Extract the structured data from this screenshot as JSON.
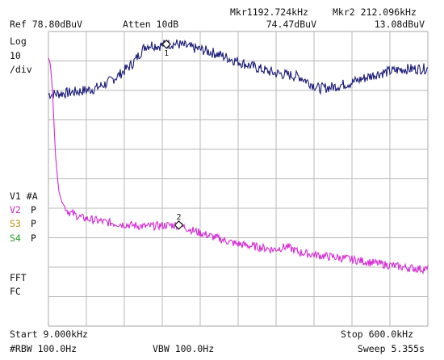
{
  "header": {
    "ref_level": "Ref 78.80dBuV",
    "atten": "Atten 10dB",
    "marker1_freq": "Mkr1192.724kHz",
    "marker1_amp": "74.47dBuV",
    "marker2_freq": "Mkr2 212.096kHz",
    "marker2_amp": "13.08dBuV"
  },
  "scale": {
    "log_label": "Log",
    "per_div_value": "10",
    "per_div_unit": "/div"
  },
  "side_labels": {
    "v1": "V1 #A",
    "v2_name": "V2",
    "v2_mode": "P",
    "s3_name": "S3",
    "s3_mode": "P",
    "s4_name": "S4",
    "s4_mode": "P",
    "fft": "FFT",
    "fc": "FC"
  },
  "footer": {
    "start": "Start 9.000kHz",
    "stop": "Stop 600.0kHz",
    "rbw": "#RBW 100.0Hz",
    "vbw": "VBW 100.0Hz",
    "sweep": "Sweep 5.355s"
  },
  "markers": {
    "m1_label": "1",
    "m2_label": "2"
  },
  "colors": {
    "trace1": "#1c1c78",
    "trace2": "#d42ad4",
    "v2_label": "#c81ec8",
    "s3_label": "#c08a00",
    "s4_label": "#1c9c1c",
    "grid": "#b8b8b8"
  },
  "chart_data": {
    "type": "line",
    "x_unit": "kHz",
    "xlim": [
      9.0,
      600.0
    ],
    "y_unit": "dBuV",
    "ylim": [
      -21.2,
      78.8
    ],
    "y_scale": "log 10 dB/div",
    "grid": true,
    "series": [
      {
        "x": [
          9,
          20,
          40,
          60,
          80,
          100,
          120,
          140,
          160,
          170,
          180,
          192.7,
          210,
          230,
          250,
          270,
          300,
          330,
          360,
          400,
          430,
          450,
          480,
          520,
          560,
          600
        ],
        "values": [
          57.5,
          57.6,
          58.0,
          58.6,
          59.3,
          61.2,
          64.2,
          67.9,
          73.9,
          74.3,
          73.9,
          74.5,
          74.6,
          73.4,
          72.5,
          71.3,
          68.9,
          66.7,
          64.7,
          63.5,
          59.5,
          59.9,
          61.4,
          64.4,
          66.0,
          66.2
        ]
      },
      {
        "x": [
          9,
          12,
          15,
          20,
          25,
          30,
          40,
          60,
          80,
          100,
          120,
          140,
          160,
          190,
          212.1,
          240,
          270,
          300,
          330,
          360,
          380,
          400,
          430,
          470,
          500,
          530,
          560,
          600
        ],
        "values": [
          69.8,
          67.8,
          59.8,
          36.8,
          24.8,
          20.8,
          17.6,
          15.6,
          14.8,
          14.0,
          13.5,
          13.0,
          12.6,
          13.0,
          13.1,
          10.8,
          8.8,
          6.8,
          5.8,
          4.8,
          5.8,
          3.8,
          2.8,
          1.8,
          0.8,
          -0.2,
          -1.2,
          -2.0
        ]
      }
    ],
    "markers": [
      {
        "label": "1",
        "x": 192.724,
        "y": 74.47
      },
      {
        "label": "2",
        "x": 212.096,
        "y": 13.08
      }
    ]
  }
}
